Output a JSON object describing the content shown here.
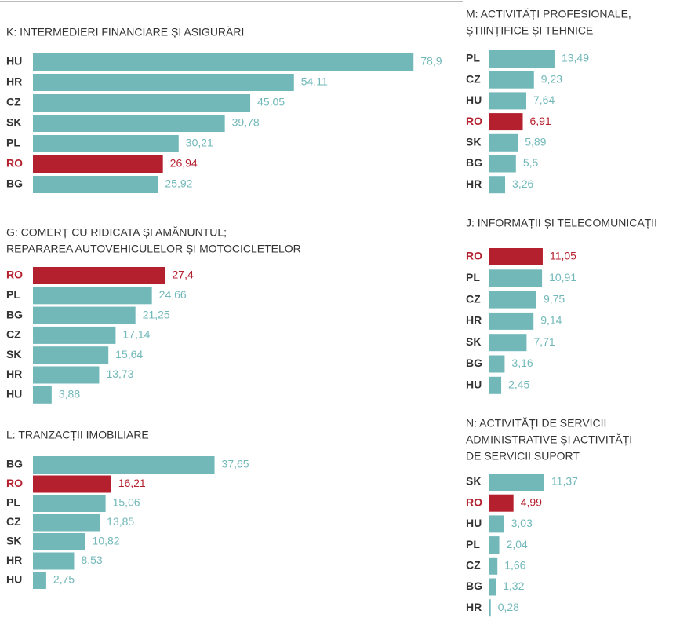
{
  "chart_data": [
    {
      "type": "bar",
      "title": [
        "K: INTERMEDIERI FINANCIARE ȘI ASIGURĂRI"
      ],
      "color": "#72b8b9",
      "categories": [
        "HU",
        "HR",
        "CZ",
        "SK",
        "PL",
        "RO",
        "BG"
      ],
      "values": [
        78.9,
        54.11,
        45.05,
        39.78,
        30.21,
        26.94,
        25.92
      ],
      "value_labels": [
        "78,9",
        "54,11",
        "45,05",
        "39,78",
        "30,21",
        "26,94",
        "25,92"
      ],
      "colors": [
        "#72b8b9",
        "#72b8b9",
        "#72b8b9",
        "#72b8b9",
        "#72b8b9",
        "#b5202e",
        "#72b8b9"
      ]
    },
    {
      "type": "bar",
      "title": [
        "G: COMERȚ CU RIDICATA ȘI AMĂNUNTUL;",
        "REPARAREA AUTOVEHICULELOR ȘI MOTOCICLETELOR"
      ],
      "color": "#72b8b9",
      "categories": [
        "RO",
        "PL",
        "BG",
        "CZ",
        "SK",
        "HR",
        "HU"
      ],
      "values": [
        27.4,
        24.66,
        21.25,
        17.14,
        15.64,
        13.73,
        3.88
      ],
      "value_labels": [
        "27,4",
        "24,66",
        "21,25",
        "17,14",
        "15,64",
        "13,73",
        "3,88"
      ],
      "colors": [
        "#b5202e",
        "#72b8b9",
        "#72b8b9",
        "#72b8b9",
        "#72b8b9",
        "#72b8b9",
        "#72b8b9"
      ]
    },
    {
      "type": "bar",
      "title": [
        "L: TRANZACȚII IMOBILIARE"
      ],
      "color": "#72b8b9",
      "categories": [
        "BG",
        "RO",
        "PL",
        "CZ",
        "SK",
        "HR",
        "HU"
      ],
      "values": [
        37.65,
        16.21,
        15.06,
        13.85,
        10.82,
        8.53,
        2.75
      ],
      "value_labels": [
        "37,65",
        "16,21",
        "15,06",
        "13,85",
        "10,82",
        "8,53",
        "2,75"
      ],
      "colors": [
        "#72b8b9",
        "#b5202e",
        "#72b8b9",
        "#72b8b9",
        "#72b8b9",
        "#72b8b9",
        "#72b8b9"
      ]
    },
    {
      "type": "bar",
      "title": [
        "M: ACTIVITĂȚI PROFESIONALE,",
        "ȘTIINȚIFICE ȘI TEHNICE"
      ],
      "color": "#72b8b9",
      "categories": [
        "PL",
        "CZ",
        "HU",
        "RO",
        "SK",
        "BG",
        "HR"
      ],
      "values": [
        13.49,
        9.23,
        7.64,
        6.91,
        5.89,
        5.5,
        3.26
      ],
      "value_labels": [
        "13,49",
        "9,23",
        "7,64",
        "6,91",
        "5,89",
        "5,5",
        "3,26"
      ],
      "colors": [
        "#72b8b9",
        "#72b8b9",
        "#72b8b9",
        "#b5202e",
        "#72b8b9",
        "#72b8b9",
        "#72b8b9"
      ]
    },
    {
      "type": "bar",
      "title": [
        "J: INFORMAȚII ȘI TELECOMUNICAȚII"
      ],
      "color": "#72b8b9",
      "categories": [
        "RO",
        "PL",
        "CZ",
        "HR",
        "SK",
        "BG",
        "HU"
      ],
      "values": [
        11.05,
        10.91,
        9.75,
        9.14,
        7.71,
        3.16,
        2.45
      ],
      "value_labels": [
        "11,05",
        "10,91",
        "9,75",
        "9,14",
        "7,71",
        "3,16",
        "2,45"
      ],
      "colors": [
        "#b5202e",
        "#72b8b9",
        "#72b8b9",
        "#72b8b9",
        "#72b8b9",
        "#72b8b9",
        "#72b8b9"
      ]
    },
    {
      "type": "bar",
      "title": [
        "N: ACTIVITĂȚI DE SERVICII",
        "ADMINISTRATIVE ȘI ACTIVITĂȚI",
        "DE SERVICII SUPORT"
      ],
      "color": "#72b8b9",
      "categories": [
        "SK",
        "RO",
        "HU",
        "PL",
        "CZ",
        "BG",
        "HR"
      ],
      "values": [
        11.37,
        4.99,
        3.03,
        2.04,
        1.66,
        1.32,
        0.28
      ],
      "value_labels": [
        "11,37",
        "4,99",
        "3,03",
        "2,04",
        "1,66",
        "1,32",
        "0,28"
      ],
      "colors": [
        "#72b8b9",
        "#b5202e",
        "#72b8b9",
        "#72b8b9",
        "#72b8b9",
        "#72b8b9",
        "#72b8b9"
      ]
    }
  ]
}
